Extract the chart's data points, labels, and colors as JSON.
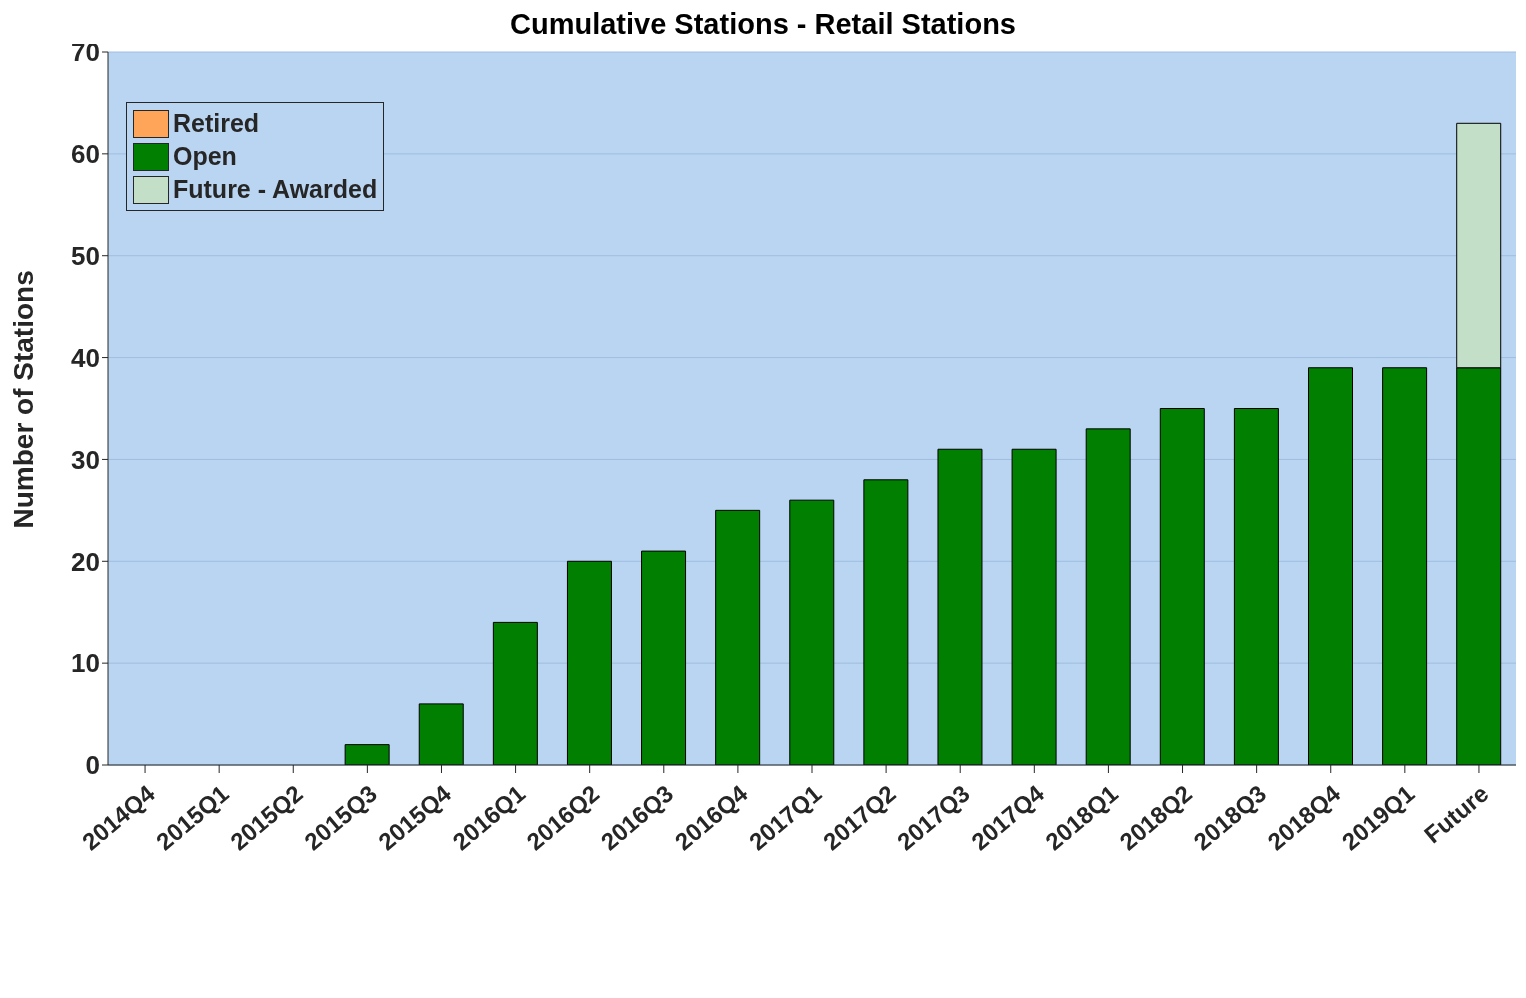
{
  "chart_data": {
    "type": "bar",
    "title": "Cumulative Stations - Retail Stations",
    "ylabel": "Number of Stations",
    "categories": [
      "2014Q4",
      "2015Q1",
      "2015Q2",
      "2015Q3",
      "2015Q4",
      "2016Q1",
      "2016Q2",
      "2016Q3",
      "2016Q4",
      "2017Q1",
      "2017Q2",
      "2017Q3",
      "2017Q4",
      "2018Q1",
      "2018Q2",
      "2018Q3",
      "2018Q4",
      "2019Q1",
      "Future"
    ],
    "series": [
      {
        "name": "Open",
        "color": "#007f00",
        "values": [
          0,
          0,
          0,
          2,
          6,
          14,
          20,
          21,
          25,
          26,
          28,
          31,
          31,
          33,
          35,
          35,
          39,
          39,
          39
        ]
      },
      {
        "name": "Retired",
        "color": "#ffa55a",
        "values": [
          0,
          0,
          0,
          0,
          0,
          0,
          0,
          0,
          0,
          0,
          0,
          0,
          0,
          0,
          0,
          0,
          0,
          0,
          0
        ]
      },
      {
        "name": "Future - Awarded",
        "color": "#c4dfc8",
        "values": [
          0,
          0,
          0,
          0,
          0,
          0,
          0,
          0,
          0,
          0,
          0,
          0,
          0,
          0,
          0,
          0,
          0,
          0,
          24
        ]
      }
    ],
    "stacked": true,
    "ylim": [
      0,
      70
    ],
    "yticks": [
      0,
      10,
      20,
      30,
      40,
      50,
      60,
      70
    ],
    "grid": "y",
    "legend": "top left"
  }
}
